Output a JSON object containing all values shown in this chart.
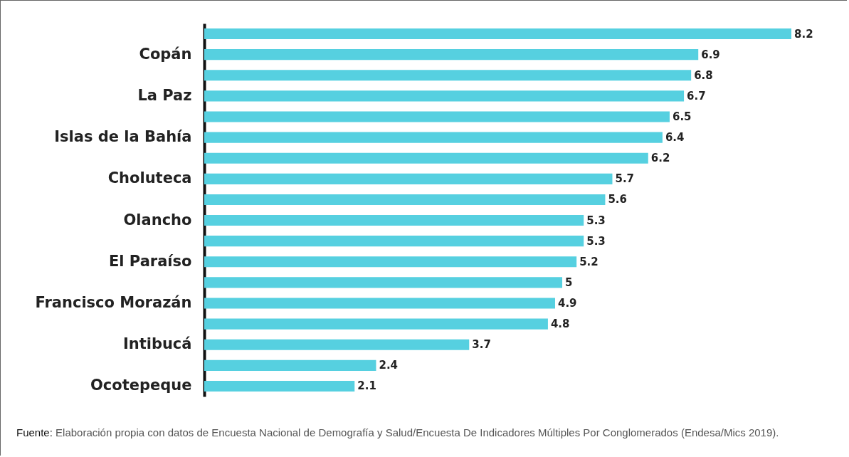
{
  "chart_data": {
    "type": "bar",
    "orientation": "horizontal",
    "data_labels": true,
    "color": "#56d0e0",
    "categories": [
      null,
      "Copán",
      null,
      "La Paz",
      null,
      "Islas de la Bahía",
      null,
      "Choluteca",
      null,
      "Olancho",
      null,
      "El Paraíso",
      null,
      "Francisco Morazán",
      null,
      "Intibucá",
      null,
      "Ocotepeque"
    ],
    "values": [
      8.2,
      6.9,
      6.8,
      6.7,
      6.5,
      6.4,
      6.2,
      5.7,
      5.6,
      5.3,
      5.3,
      5.2,
      5,
      4.9,
      4.8,
      3.7,
      2.4,
      2.1
    ],
    "annotations": [
      "Fuente: Elaboración propia con datos de Encuesta Nacional de Demografía y Salud/Encuesta De Indicadores Múltiples Por Conglomerados (Endesa/Mics 2019)."
    ]
  }
}
